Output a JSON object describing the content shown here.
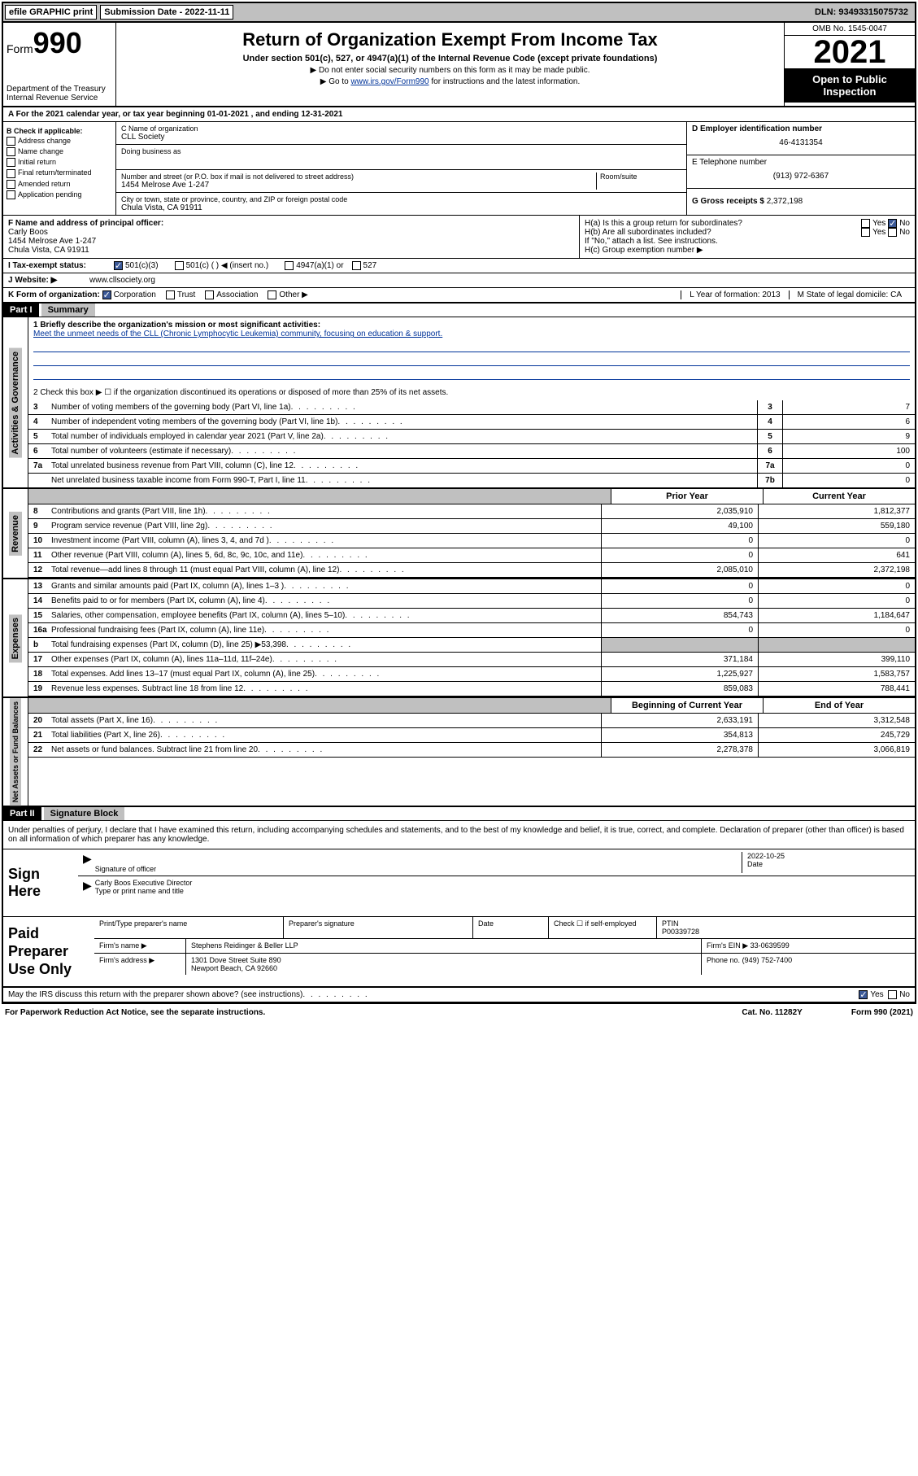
{
  "topbar": {
    "efile": "efile GRAPHIC print",
    "submission": "Submission Date - 2022-11-11",
    "dln": "DLN: 93493315075732"
  },
  "header": {
    "form_prefix": "Form",
    "form_number": "990",
    "dept": "Department of the Treasury",
    "irs": "Internal Revenue Service",
    "title": "Return of Organization Exempt From Income Tax",
    "subtitle": "Under section 501(c), 527, or 4947(a)(1) of the Internal Revenue Code (except private foundations)",
    "note1": "▶ Do not enter social security numbers on this form as it may be made public.",
    "note2_pre": "▶ Go to ",
    "note2_link": "www.irs.gov/Form990",
    "note2_post": " for instructions and the latest information.",
    "omb": "OMB No. 1545-0047",
    "year": "2021",
    "open": "Open to Public Inspection"
  },
  "period": {
    "text": "A For the 2021 calendar year, or tax year beginning 01-01-2021    , and ending 12-31-2021"
  },
  "box_b": {
    "title": "B Check if applicable:",
    "items": [
      "Address change",
      "Name change",
      "Initial return",
      "Final return/terminated",
      "Amended return",
      "Application pending"
    ]
  },
  "box_c": {
    "name_label": "C Name of organization",
    "name": "CLL Society",
    "dba_label": "Doing business as",
    "addr_label": "Number and street (or P.O. box if mail is not delivered to street address)",
    "room_label": "Room/suite",
    "addr": "1454 Melrose Ave 1-247",
    "city_label": "City or town, state or province, country, and ZIP or foreign postal code",
    "city": "Chula Vista, CA  91911"
  },
  "box_d": {
    "ein_label": "D Employer identification number",
    "ein": "46-4131354",
    "phone_label": "E Telephone number",
    "phone": "(913) 972-6367",
    "gross_label": "G Gross receipts $",
    "gross": "2,372,198"
  },
  "box_f": {
    "label": "F  Name and address of principal officer:",
    "name": "Carly Boos",
    "addr": "1454 Melrose Ave 1-247",
    "city": "Chula Vista, CA  91911"
  },
  "box_h": {
    "a": "H(a)  Is this a group return for subordinates?",
    "b": "H(b)  Are all subordinates included?",
    "b_note": "If \"No,\" attach a list. See instructions.",
    "c": "H(c)  Group exemption number ▶",
    "yes": "Yes",
    "no": "No"
  },
  "box_i": {
    "label": "I    Tax-exempt status:",
    "opt1": "501(c)(3)",
    "opt2": "501(c) (  ) ◀ (insert no.)",
    "opt3": "4947(a)(1) or",
    "opt4": "527"
  },
  "box_j": {
    "label": "J   Website: ▶",
    "value": "www.cllsociety.org"
  },
  "box_k": {
    "label": "K Form of organization:",
    "opts": [
      "Corporation",
      "Trust",
      "Association",
      "Other ▶"
    ]
  },
  "box_lm": {
    "l": "L Year of formation: 2013",
    "m": "M State of legal domicile: CA"
  },
  "part1": {
    "header": "Part I",
    "title": "Summary",
    "line1_label": "1  Briefly describe the organization's mission or most significant activities:",
    "line1_text": "Meet the unmeet needs of the CLL (Chronic Lymphocytic Leukemia) community, focusing on education & support.",
    "line2": "2   Check this box ▶ ☐  if the organization discontinued its operations or disposed of more than 25% of its net assets.",
    "governance_label": "Activities & Governance",
    "revenue_label": "Revenue",
    "expenses_label": "Expenses",
    "netassets_label": "Net Assets or Fund Balances",
    "lines_gov": [
      {
        "n": "3",
        "d": "Number of voting members of the governing body (Part VI, line 1a)",
        "box": "3",
        "v": "7"
      },
      {
        "n": "4",
        "d": "Number of independent voting members of the governing body (Part VI, line 1b)",
        "box": "4",
        "v": "6"
      },
      {
        "n": "5",
        "d": "Total number of individuals employed in calendar year 2021 (Part V, line 2a)",
        "box": "5",
        "v": "9"
      },
      {
        "n": "6",
        "d": "Total number of volunteers (estimate if necessary)",
        "box": "6",
        "v": "100"
      },
      {
        "n": "7a",
        "d": "Total unrelated business revenue from Part VIII, column (C), line 12",
        "box": "7a",
        "v": "0"
      },
      {
        "n": "",
        "d": "Net unrelated business taxable income from Form 990-T, Part I, line 11",
        "box": "7b",
        "v": "0"
      }
    ],
    "col_headers": {
      "prior": "Prior Year",
      "current": "Current Year"
    },
    "lines_rev": [
      {
        "n": "8",
        "d": "Contributions and grants (Part VIII, line 1h)",
        "p": "2,035,910",
        "c": "1,812,377"
      },
      {
        "n": "9",
        "d": "Program service revenue (Part VIII, line 2g)",
        "p": "49,100",
        "c": "559,180"
      },
      {
        "n": "10",
        "d": "Investment income (Part VIII, column (A), lines 3, 4, and 7d )",
        "p": "0",
        "c": "0"
      },
      {
        "n": "11",
        "d": "Other revenue (Part VIII, column (A), lines 5, 6d, 8c, 9c, 10c, and 11e)",
        "p": "0",
        "c": "641"
      },
      {
        "n": "12",
        "d": "Total revenue—add lines 8 through 11 (must equal Part VIII, column (A), line 12)",
        "p": "2,085,010",
        "c": "2,372,198"
      }
    ],
    "lines_exp": [
      {
        "n": "13",
        "d": "Grants and similar amounts paid (Part IX, column (A), lines 1–3 )",
        "p": "0",
        "c": "0"
      },
      {
        "n": "14",
        "d": "Benefits paid to or for members (Part IX, column (A), line 4)",
        "p": "0",
        "c": "0"
      },
      {
        "n": "15",
        "d": "Salaries, other compensation, employee benefits (Part IX, column (A), lines 5–10)",
        "p": "854,743",
        "c": "1,184,647"
      },
      {
        "n": "16a",
        "d": "Professional fundraising fees (Part IX, column (A), line 11e)",
        "p": "0",
        "c": "0"
      },
      {
        "n": "b",
        "d": "Total fundraising expenses (Part IX, column (D), line 25) ▶53,398",
        "p": "",
        "c": "",
        "shaded": true
      },
      {
        "n": "17",
        "d": "Other expenses (Part IX, column (A), lines 11a–11d, 11f–24e)",
        "p": "371,184",
        "c": "399,110"
      },
      {
        "n": "18",
        "d": "Total expenses. Add lines 13–17 (must equal Part IX, column (A), line 25)",
        "p": "1,225,927",
        "c": "1,583,757"
      },
      {
        "n": "19",
        "d": "Revenue less expenses. Subtract line 18 from line 12",
        "p": "859,083",
        "c": "788,441"
      }
    ],
    "net_headers": {
      "begin": "Beginning of Current Year",
      "end": "End of Year"
    },
    "lines_net": [
      {
        "n": "20",
        "d": "Total assets (Part X, line 16)",
        "p": "2,633,191",
        "c": "3,312,548"
      },
      {
        "n": "21",
        "d": "Total liabilities (Part X, line 26)",
        "p": "354,813",
        "c": "245,729"
      },
      {
        "n": "22",
        "d": "Net assets or fund balances. Subtract line 21 from line 20",
        "p": "2,278,378",
        "c": "3,066,819"
      }
    ]
  },
  "part2": {
    "header": "Part II",
    "title": "Signature Block",
    "decl": "Under penalties of perjury, I declare that I have examined this return, including accompanying schedules and statements, and to the best of my knowledge and belief, it is true, correct, and complete. Declaration of preparer (other than officer) is based on all information of which preparer has any knowledge.",
    "sign_here": "Sign Here",
    "sig_officer": "Signature of officer",
    "date": "Date",
    "sig_date": "2022-10-25",
    "name_title": "Carly Boos  Executive Director",
    "name_label": "Type or print name and title",
    "paid": "Paid Preparer Use Only",
    "prep_name": "Print/Type preparer's name",
    "prep_sig": "Preparer's signature",
    "prep_date": "Date",
    "check_self": "Check ☐ if self-employed",
    "ptin_label": "PTIN",
    "ptin": "P00339728",
    "firm_name_label": "Firm's name      ▶",
    "firm_name": "Stephens Reidinger & Beller LLP",
    "firm_ein_label": "Firm's EIN ▶",
    "firm_ein": "33-0639599",
    "firm_addr_label": "Firm's address ▶",
    "firm_addr1": "1301 Dove Street Suite 890",
    "firm_addr2": "Newport Beach, CA  92660",
    "phone_label": "Phone no.",
    "phone": "(949) 752-7400",
    "discuss": "May the IRS discuss this return with the preparer shown above? (see instructions)",
    "yes": "Yes",
    "no": "No"
  },
  "footer": {
    "pra": "For Paperwork Reduction Act Notice, see the separate instructions.",
    "cat": "Cat. No. 11282Y",
    "form": "Form 990 (2021)"
  }
}
